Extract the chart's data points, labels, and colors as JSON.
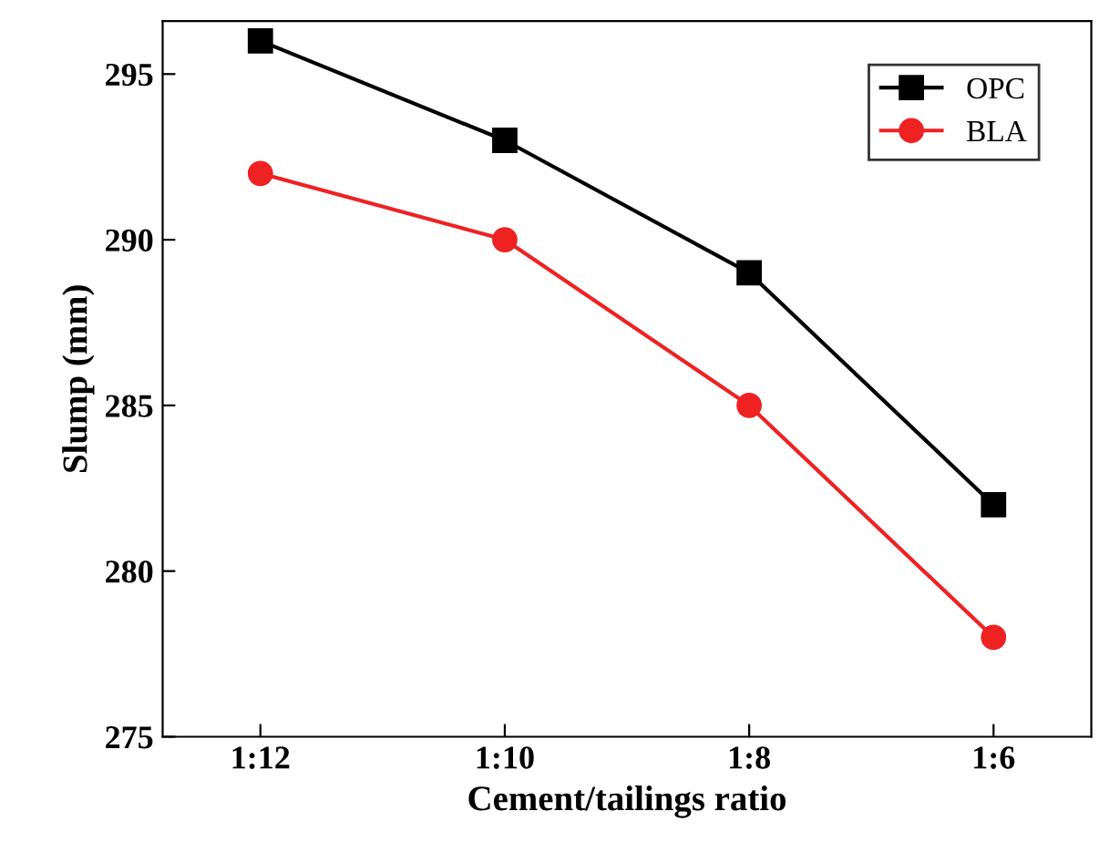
{
  "chart_data": {
    "type": "line",
    "xlabel": "Cement/tailings ratio",
    "ylabel": "Slump (mm)",
    "categories": [
      "1:12",
      "1:10",
      "1:8",
      "1:6"
    ],
    "series": [
      {
        "name": "OPC",
        "color": "#000000",
        "values": [
          296,
          293,
          289,
          282
        ],
        "marker": "square"
      },
      {
        "name": "BLA",
        "color": "#ee2222",
        "values": [
          292,
          290,
          285,
          278
        ],
        "marker": "circle"
      }
    ],
    "ylim": [
      275,
      296.6
    ],
    "yticks": [
      275,
      280,
      285,
      290,
      295
    ],
    "grid": false,
    "legend": "top right",
    "line_style": "solid"
  }
}
